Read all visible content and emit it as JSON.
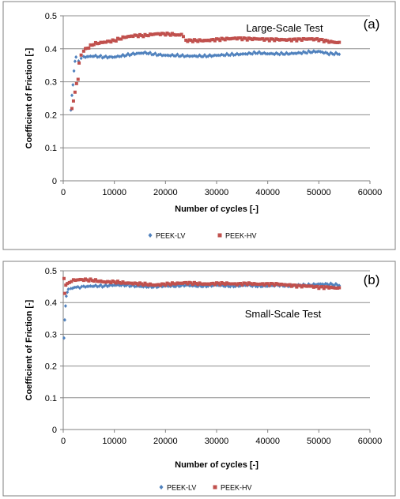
{
  "colors": {
    "peek_lv": "#4F81BD",
    "peek_hv": "#C0504D",
    "grid": "#8C8C8C",
    "frame": "#7F7F7F"
  },
  "chart_data": [
    {
      "type": "scatter",
      "panel_label": "(a)",
      "annotation": "Large-Scale Test",
      "xlabel": "Number of cycles [-]",
      "ylabel": "Coefficient of Friction [-]",
      "xlim": [
        0,
        60000
      ],
      "ylim": [
        0,
        0.5
      ],
      "xticks": [
        "0",
        "10000",
        "20000",
        "30000",
        "40000",
        "50000",
        "60000"
      ],
      "yticks": [
        "0",
        "0.1",
        "0.2",
        "0.3",
        "0.4",
        "0.5"
      ],
      "grid": "horizontal",
      "legend_position": "bottom",
      "series": [
        {
          "name": "PEEK-LV",
          "marker": "diamond",
          "color": "#4F81BD",
          "points": [
            [
              1500,
              0.215
            ],
            [
              1700,
              0.26
            ],
            [
              1900,
              0.29
            ],
            [
              2100,
              0.33
            ],
            [
              2300,
              0.365
            ],
            [
              2500,
              0.375
            ],
            [
              3000,
              0.36
            ],
            [
              3500,
              0.37
            ],
            [
              4000,
              0.375
            ],
            [
              6000,
              0.378
            ],
            [
              8000,
              0.375
            ],
            [
              10000,
              0.375
            ],
            [
              12000,
              0.38
            ],
            [
              14000,
              0.385
            ],
            [
              16000,
              0.388
            ],
            [
              18000,
              0.383
            ],
            [
              20000,
              0.38
            ],
            [
              22000,
              0.38
            ],
            [
              24000,
              0.378
            ],
            [
              26000,
              0.378
            ],
            [
              28000,
              0.378
            ],
            [
              30000,
              0.38
            ],
            [
              32000,
              0.382
            ],
            [
              34000,
              0.383
            ],
            [
              36000,
              0.385
            ],
            [
              38000,
              0.388
            ],
            [
              40000,
              0.385
            ],
            [
              42000,
              0.385
            ],
            [
              44000,
              0.385
            ],
            [
              46000,
              0.387
            ],
            [
              48000,
              0.39
            ],
            [
              50000,
              0.392
            ],
            [
              52000,
              0.385
            ],
            [
              54000,
              0.385
            ]
          ]
        },
        {
          "name": "PEEK-HV",
          "marker": "square",
          "color": "#C0504D",
          "points": [
            [
              1700,
              0.22
            ],
            [
              2000,
              0.24
            ],
            [
              2300,
              0.27
            ],
            [
              2600,
              0.295
            ],
            [
              2900,
              0.305
            ],
            [
              3100,
              0.36
            ],
            [
              3500,
              0.38
            ],
            [
              4000,
              0.395
            ],
            [
              5000,
              0.405
            ],
            [
              6000,
              0.415
            ],
            [
              8000,
              0.42
            ],
            [
              10000,
              0.425
            ],
            [
              12000,
              0.435
            ],
            [
              14000,
              0.44
            ],
            [
              16000,
              0.44
            ],
            [
              18000,
              0.445
            ],
            [
              20000,
              0.445
            ],
            [
              22000,
              0.443
            ],
            [
              23500,
              0.44
            ],
            [
              24000,
              0.425
            ],
            [
              26000,
              0.425
            ],
            [
              28000,
              0.425
            ],
            [
              30000,
              0.428
            ],
            [
              32000,
              0.43
            ],
            [
              34000,
              0.432
            ],
            [
              36000,
              0.43
            ],
            [
              38000,
              0.43
            ],
            [
              40000,
              0.428
            ],
            [
              42000,
              0.428
            ],
            [
              44000,
              0.427
            ],
            [
              46000,
              0.428
            ],
            [
              48000,
              0.43
            ],
            [
              50000,
              0.428
            ],
            [
              52000,
              0.422
            ],
            [
              54000,
              0.418
            ]
          ]
        }
      ]
    },
    {
      "type": "scatter",
      "panel_label": "(b)",
      "annotation": "Small-Scale Test",
      "xlabel": "Number of cycles [-]",
      "ylabel": "Coefficient of Friction [-]",
      "xlim": [
        0,
        60000
      ],
      "ylim": [
        0,
        0.5
      ],
      "xticks": [
        "0",
        "10000",
        "20000",
        "30000",
        "40000",
        "50000",
        "60000"
      ],
      "yticks": [
        "0",
        "0.1",
        "0.2",
        "0.3",
        "0.4",
        "0.5"
      ],
      "grid": "horizontal",
      "legend_position": "bottom",
      "series": [
        {
          "name": "PEEK-LV",
          "marker": "diamond",
          "color": "#4F81BD",
          "points": [
            [
              150,
              0.285
            ],
            [
              300,
              0.345
            ],
            [
              450,
              0.39
            ],
            [
              600,
              0.42
            ],
            [
              800,
              0.435
            ],
            [
              1000,
              0.44
            ],
            [
              1500,
              0.445
            ],
            [
              2500,
              0.448
            ],
            [
              4000,
              0.45
            ],
            [
              6000,
              0.452
            ],
            [
              8000,
              0.452
            ],
            [
              10000,
              0.455
            ],
            [
              12000,
              0.455
            ],
            [
              14000,
              0.452
            ],
            [
              16000,
              0.45
            ],
            [
              18000,
              0.45
            ],
            [
              20000,
              0.452
            ],
            [
              22000,
              0.452
            ],
            [
              24000,
              0.455
            ],
            [
              26000,
              0.452
            ],
            [
              28000,
              0.452
            ],
            [
              30000,
              0.455
            ],
            [
              32000,
              0.452
            ],
            [
              34000,
              0.452
            ],
            [
              36000,
              0.455
            ],
            [
              38000,
              0.452
            ],
            [
              40000,
              0.452
            ],
            [
              42000,
              0.455
            ],
            [
              44000,
              0.452
            ],
            [
              46000,
              0.455
            ],
            [
              48000,
              0.455
            ],
            [
              50000,
              0.458
            ],
            [
              52000,
              0.458
            ],
            [
              54000,
              0.455
            ]
          ]
        },
        {
          "name": "PEEK-HV",
          "marker": "square",
          "color": "#C0504D",
          "points": [
            [
              150,
              0.475
            ],
            [
              300,
              0.43
            ],
            [
              500,
              0.455
            ],
            [
              800,
              0.46
            ],
            [
              1200,
              0.465
            ],
            [
              2000,
              0.47
            ],
            [
              3000,
              0.472
            ],
            [
              4000,
              0.472
            ],
            [
              6000,
              0.47
            ],
            [
              8000,
              0.465
            ],
            [
              10000,
              0.465
            ],
            [
              12000,
              0.462
            ],
            [
              14000,
              0.46
            ],
            [
              16000,
              0.458
            ],
            [
              18000,
              0.455
            ],
            [
              20000,
              0.458
            ],
            [
              22000,
              0.46
            ],
            [
              24000,
              0.462
            ],
            [
              26000,
              0.46
            ],
            [
              28000,
              0.458
            ],
            [
              30000,
              0.46
            ],
            [
              32000,
              0.46
            ],
            [
              34000,
              0.458
            ],
            [
              36000,
              0.46
            ],
            [
              38000,
              0.458
            ],
            [
              40000,
              0.458
            ],
            [
              42000,
              0.458
            ],
            [
              44000,
              0.455
            ],
            [
              46000,
              0.452
            ],
            [
              48000,
              0.452
            ],
            [
              50000,
              0.448
            ],
            [
              52000,
              0.448
            ],
            [
              54000,
              0.445
            ]
          ]
        }
      ]
    }
  ]
}
